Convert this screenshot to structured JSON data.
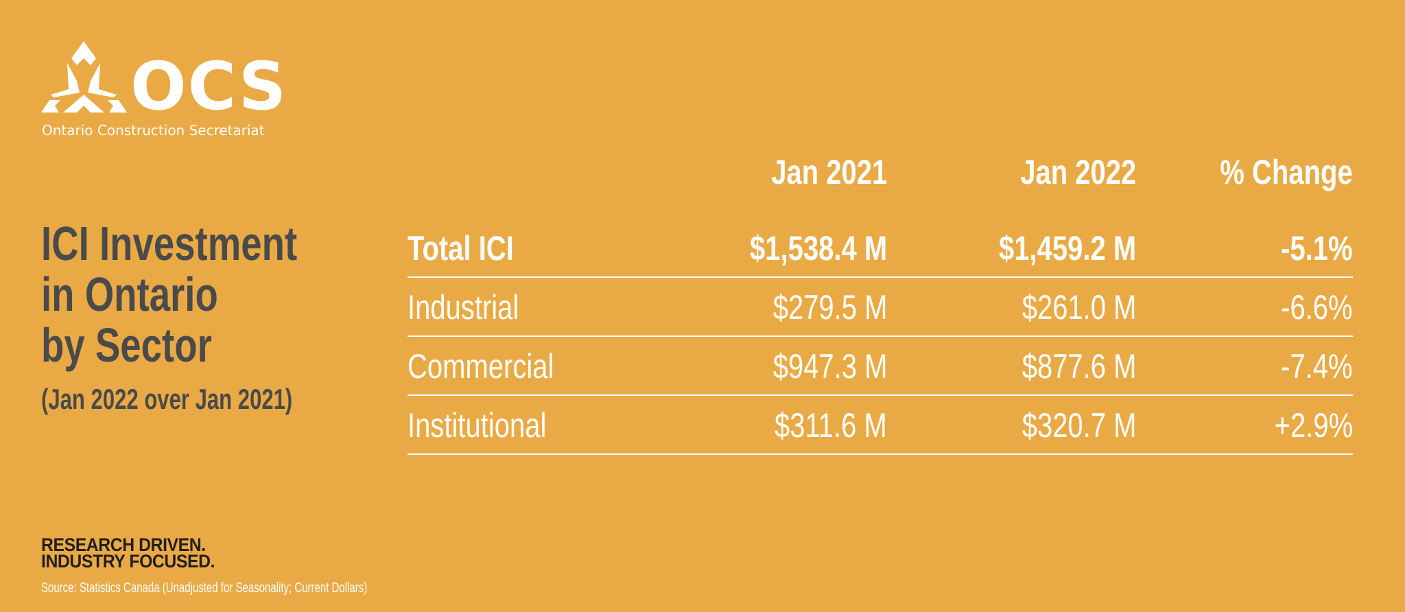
{
  "brand": {
    "logo_text": "OCS",
    "name": "Ontario Construction Secretariat",
    "color": "#E9AA45"
  },
  "title": {
    "lines": [
      "ICI Investment",
      "in Ontario",
      "by Sector"
    ],
    "subtitle": "(Jan 2022 over Jan 2021)"
  },
  "table": {
    "headers": [
      "",
      "Jan 2021",
      "Jan 2022",
      "% Change"
    ],
    "rows": [
      {
        "label": "Total ICI",
        "jan2021": "$1,538.4 M",
        "jan2022": "$1,459.2 M",
        "change": "-5.1%"
      },
      {
        "label": "Industrial",
        "jan2021": "$279.5 M",
        "jan2022": "$261.0 M",
        "change": "-6.6%"
      },
      {
        "label": "Commercial",
        "jan2021": "$947.3 M",
        "jan2022": "$877.6 M",
        "change": "-7.4%"
      },
      {
        "label": "Institutional",
        "jan2021": "$311.6 M",
        "jan2022": "$320.7 M",
        "change": "+2.9%"
      }
    ]
  },
  "tagline": [
    "RESEARCH DRIVEN.",
    "INDUSTRY FOCUSED."
  ],
  "source": "Source: Statistics Canada (Unadjusted for Seasonality; Current Dollars)"
}
